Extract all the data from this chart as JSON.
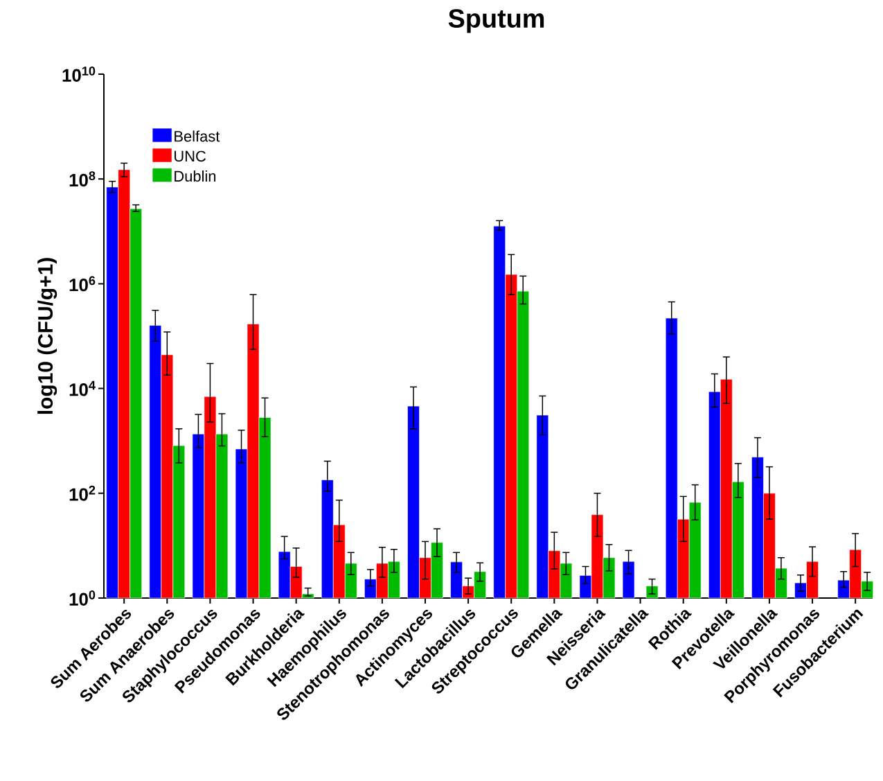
{
  "chart_data": {
    "type": "bar",
    "title": "Sputum",
    "ylabel": "log10 (CFU/g+1)",
    "log": "y",
    "legend": "top left",
    "categories": [
      "Sum Aerobes",
      "Sum Anaerobes",
      "Staphylococcus",
      "Pseudomonas",
      "Burkholderia",
      "Haemophilus",
      "Stenotrophomonas",
      "Actinomyces",
      "Lactobacillus",
      "Streptococcus",
      "Gemella",
      "Neisseria",
      "Granulicatella",
      "Rothia",
      "Prevotella",
      "Veillonella",
      "Porphyromonas",
      "Fusobacterium"
    ],
    "ylim": [
      1,
      10000000000.0
    ],
    "yticks": [
      {
        "value": 1,
        "label": "10$^{0}$"
      },
      {
        "value": 100,
        "label": "10$^{2}$"
      },
      {
        "value": 10000,
        "label": "10$^{4}$"
      },
      {
        "value": 1000000,
        "label": "10$^{6}$"
      },
      {
        "value": 100000000,
        "label": "10$^{8}$"
      },
      {
        "value": 10000000000,
        "label": "10$^{10}$"
      }
    ],
    "series": [
      {
        "name": "Belfast",
        "color": "#0000ff",
        "values": [
          70000000.0,
          160000.0,
          1350,
          700,
          7.7,
          180,
          2.3,
          4600,
          4.9,
          12600000.0,
          3100,
          2.7,
          5,
          220000.0,
          8700,
          490,
          1.95,
          2.2
        ],
        "errors": [
          [
            55000000.0,
            90000000.0
          ],
          [
            80000.0,
            310000.0
          ],
          [
            740,
            3200
          ],
          [
            380,
            1600
          ],
          [
            5.6,
            15
          ],
          [
            110,
            410
          ],
          [
            1.7,
            3.5
          ],
          [
            1700,
            10700
          ],
          [
            3.1,
            7.4
          ],
          [
            10500000.0,
            16000000.0
          ],
          [
            1300,
            7200
          ],
          [
            1.9,
            4
          ],
          [
            2.9,
            8.1
          ],
          [
            110000.0,
            450000.0
          ],
          [
            4400,
            19000
          ],
          [
            200,
            1150
          ],
          [
            1.35,
            2.75
          ],
          [
            1.6,
            3.2
          ]
        ]
      },
      {
        "name": "UNC",
        "color": "#ff0000",
        "values": [
          150000000.0,
          44000.0,
          7000,
          170000.0,
          4,
          25,
          4.6,
          5.9,
          1.7,
          1500000.0,
          8,
          39,
          null,
          32,
          15000,
          100,
          5,
          8.4
        ],
        "errors": [
          [
            110000000.0,
            200000000.0
          ],
          [
            18000.0,
            120000.0
          ],
          [
            2300,
            30000
          ],
          [
            56000.0,
            620000.0
          ],
          [
            2.5,
            9
          ],
          [
            12,
            74
          ],
          [
            2.5,
            9.3
          ],
          [
            2.3,
            12
          ],
          [
            1.2,
            2.4
          ],
          [
            620000.0,
            3600000.0
          ],
          [
            3.6,
            18
          ],
          [
            15,
            100
          ],
          null,
          [
            12,
            87
          ],
          [
            5200,
            40000
          ],
          [
            32,
            320
          ],
          [
            2.6,
            9.5
          ],
          [
            4,
            17
          ]
        ]
      },
      {
        "name": "Dublin",
        "color": "#00bb00",
        "values": [
          27000000.0,
          810,
          1350,
          2800,
          1.2,
          4.6,
          5,
          11.5,
          3.2,
          720000.0,
          4.6,
          5.9,
          1.7,
          67,
          166,
          3.7,
          null,
          2.1
        ],
        "errors": [
          [
            24000000.0,
            32000000.0
          ],
          [
            380,
            1700
          ],
          [
            800,
            3300
          ],
          [
            1200,
            6600
          ],
          [
            1.1,
            1.55
          ],
          [
            2.8,
            7.4
          ],
          [
            3.1,
            8.5
          ],
          [
            6.2,
            21
          ],
          [
            2.1,
            4.7
          ],
          [
            410000.0,
            1400000.0
          ],
          [
            2.8,
            7.4
          ],
          [
            3.3,
            10.5
          ],
          [
            1.2,
            2.3
          ],
          [
            31,
            145
          ],
          [
            83,
            370
          ],
          [
            2.3,
            5.9
          ],
          null,
          [
            1.4,
            3.1
          ]
        ]
      }
    ]
  }
}
